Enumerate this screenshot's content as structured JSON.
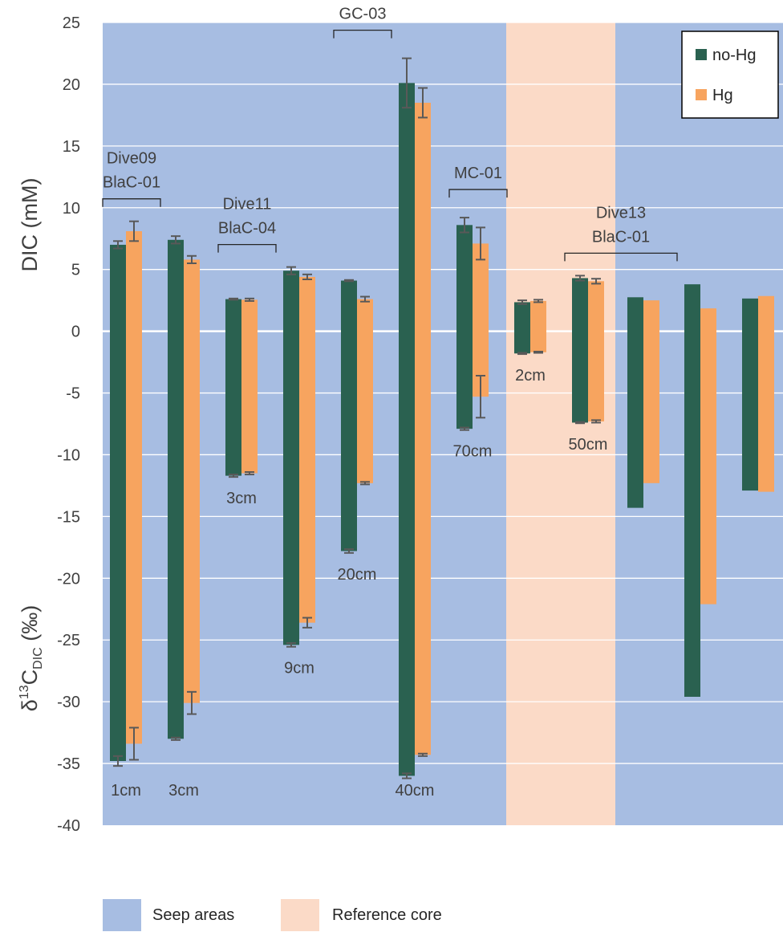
{
  "chart_data": {
    "type": "bar",
    "upper_axis_label": "DIC (mM)",
    "lower_axis_label_parts": [
      "δ",
      "13",
      "C",
      "DIC",
      " (‰)"
    ],
    "ylim": [
      -40,
      25
    ],
    "yticks": [
      25,
      20,
      15,
      10,
      5,
      0,
      -5,
      -10,
      -15,
      -20,
      -25,
      -30,
      -35,
      -40
    ],
    "grid": true,
    "legend": {
      "position": "top-right",
      "items": [
        {
          "name": "no-Hg",
          "color": "#2a6150"
        },
        {
          "name": "Hg",
          "color": "#f7a45f"
        }
      ]
    },
    "colors": {
      "seep": "#a7bde2",
      "reference": "#fbdac7",
      "no_hg": "#2a6150",
      "hg": "#f7a45f",
      "error": "#595959",
      "grid": "#ffffff"
    },
    "background_legend": [
      {
        "label": "Seep areas",
        "color": "#a7bde2"
      },
      {
        "label": "Reference core",
        "color": "#fbdac7"
      }
    ],
    "regions": [
      {
        "name": "Seep areas",
        "kind": "seep",
        "from_group": 0,
        "to_group": 4
      },
      {
        "name": "Reference core",
        "kind": "reference",
        "from_group": 5,
        "to_group": 6
      },
      {
        "name": "Seep areas",
        "kind": "seep",
        "from_group": 7,
        "to_group": 9
      }
    ],
    "core_labels": [
      {
        "lines": [
          "Dive09",
          "BlaC-01"
        ],
        "groups": [
          0,
          1
        ]
      },
      {
        "lines": [
          "Dive11",
          "BlaC-04"
        ],
        "groups": [
          2,
          3
        ]
      },
      {
        "lines": [
          "GC-03"
        ],
        "groups": [
          4,
          5
        ]
      },
      {
        "lines": [
          "MC-01"
        ],
        "groups": [
          6,
          7
        ]
      },
      {
        "lines": [
          "Dive13",
          "BlaC-01"
        ],
        "groups": [
          8,
          10
        ]
      }
    ],
    "groups": [
      {
        "depth": "1cm",
        "depth_pos": "bottom",
        "no_hg": {
          "dic": 7.0,
          "dic_err": 0.3,
          "d13c": -34.8,
          "d13c_err": 0.4
        },
        "hg": {
          "dic": 8.1,
          "dic_err": 0.8,
          "d13c": -33.4,
          "d13c_err": 1.3
        }
      },
      {
        "depth": "3cm",
        "depth_pos": "bottom",
        "no_hg": {
          "dic": 7.4,
          "dic_err": 0.3,
          "d13c": -33.0,
          "d13c_err": 0.1
        },
        "hg": {
          "dic": 5.8,
          "dic_err": 0.3,
          "d13c": -30.1,
          "d13c_err": 0.9
        }
      },
      {
        "depth": "3cm",
        "depth_pos": "below",
        "no_hg": {
          "dic": 2.6,
          "dic_err": 0.05,
          "d13c": -11.7,
          "d13c_err": 0.1
        },
        "hg": {
          "dic": 2.55,
          "dic_err": 0.1,
          "d13c": -11.5,
          "d13c_err": 0.1
        }
      },
      {
        "depth": "9cm",
        "depth_pos": "below",
        "no_hg": {
          "dic": 4.9,
          "dic_err": 0.3,
          "d13c": -25.4,
          "d13c_err": 0.15
        },
        "hg": {
          "dic": 4.4,
          "dic_err": 0.2,
          "d13c": -23.6,
          "d13c_err": 0.4
        }
      },
      {
        "depth": "20cm",
        "depth_pos": "below",
        "no_hg": {
          "dic": 4.1,
          "dic_err": 0.05,
          "d13c": -17.8,
          "d13c_err": 0.15
        },
        "hg": {
          "dic": 2.6,
          "dic_err": 0.2,
          "d13c": -12.3,
          "d13c_err": 0.1
        }
      },
      {
        "depth": "40cm",
        "depth_pos": "bottom",
        "no_hg": {
          "dic": 20.1,
          "dic_err": 2.0,
          "d13c": -36.0,
          "d13c_err": 0.2
        },
        "hg": {
          "dic": 18.5,
          "dic_err": 1.2,
          "d13c": -34.3,
          "d13c_err": 0.1
        }
      },
      {
        "depth": "70cm",
        "depth_pos": "below",
        "no_hg": {
          "dic": 8.6,
          "dic_err": 0.6,
          "d13c": -7.9,
          "d13c_err": 0.1
        },
        "hg": {
          "dic": 7.1,
          "dic_err": 1.3,
          "d13c": -5.3,
          "d13c_err": 1.7
        }
      },
      {
        "depth": "2cm",
        "depth_pos": "below",
        "no_hg": {
          "dic": 2.35,
          "dic_err": 0.15,
          "d13c": -1.8,
          "d13c_err": 0.05
        },
        "hg": {
          "dic": 2.45,
          "dic_err": 0.1,
          "d13c": -1.7,
          "d13c_err": 0.05
        }
      },
      {
        "depth": "50cm",
        "depth_pos": "below",
        "no_hg": {
          "dic": 4.3,
          "dic_err": 0.2,
          "d13c": -7.4,
          "d13c_err": 0.05
        },
        "hg": {
          "dic": 4.05,
          "dic_err": 0.2,
          "d13c": -7.3,
          "d13c_err": 0.1
        }
      },
      {
        "depth": "",
        "depth_pos": "",
        "no_hg": {
          "dic": 2.75,
          "d13c": -14.3
        },
        "hg": {
          "dic": 2.5,
          "d13c": -12.3
        }
      },
      {
        "depth": "",
        "depth_pos": "",
        "no_hg": {
          "dic": 3.8,
          "d13c": -29.6
        },
        "hg": {
          "dic": 1.85,
          "d13c": -22.1
        }
      },
      {
        "depth": "",
        "depth_pos": "",
        "no_hg": {
          "dic": 2.65,
          "d13c": -12.9
        },
        "hg": {
          "dic": 2.85,
          "d13c": -13.0
        }
      }
    ]
  }
}
